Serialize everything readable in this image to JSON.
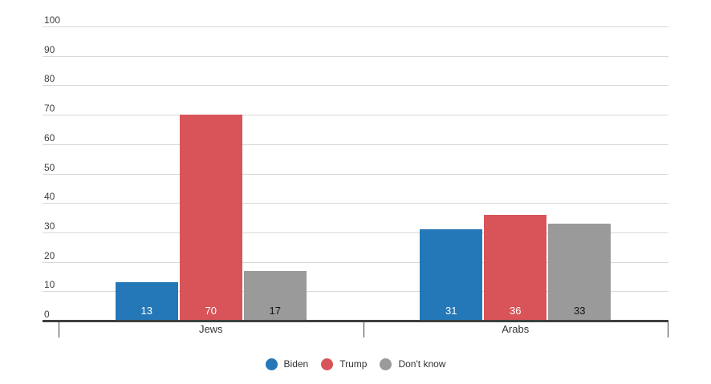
{
  "chart_data": {
    "type": "bar",
    "title": "",
    "categories": [
      "Jews",
      "Arabs"
    ],
    "series": [
      {
        "name": "Biden",
        "color": "#2478b8",
        "label_color": "#ffffff",
        "values": [
          13,
          31
        ]
      },
      {
        "name": "Trump",
        "color": "#d85459",
        "label_color": "#ffffff",
        "values": [
          70,
          36
        ]
      },
      {
        "name": "Don't know",
        "color": "#9a9a9a",
        "label_color": "#141414",
        "values": [
          17,
          33
        ]
      }
    ],
    "y_axis": {
      "min": 0,
      "max": 100,
      "step": 10,
      "tick_labels": [
        "0",
        "10",
        "20",
        "30",
        "40",
        "50",
        "60",
        "70",
        "80",
        "90",
        "100"
      ]
    },
    "legend_position": "bottom",
    "grid": true,
    "ylim": [
      0,
      100
    ]
  },
  "styles": {
    "grid_color": "#d8d8d8",
    "axis_color": "#3f3f3f",
    "text_color": "#404040",
    "background": "#ffffff"
  }
}
